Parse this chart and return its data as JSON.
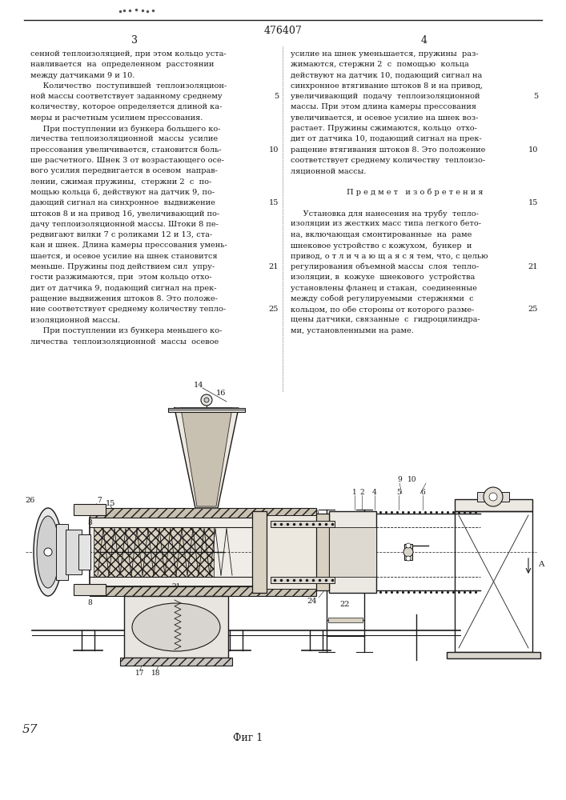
{
  "patent_number": "476407",
  "page_col_left": "3",
  "page_col_right": "4",
  "background_color": "#ffffff",
  "text_color": "#1a1a1a",
  "col_left_text": [
    "сенной теплоизоляцией, при этом кольцо уста-",
    "навливается  на  определенном  расстоянии",
    "между датчиками 9 и 10.",
    "     Количество  поступившей  теплоизоляцион-",
    "ной массы соответствует заданному среднему",
    "количеству, которое определяется длиной ка-",
    "меры и расчетным усилием прессования.",
    "     При поступлении из бункера большего ко-",
    "личества теплоизоляционной  массы  усилие",
    "прессования увеличивается, становится боль-",
    "ше расчетного. Шнек 3 от возрастающего осе-",
    "вого усилия передвигается в осевом  направ-",
    "лении, сжимая пружины,  стержни 2  с  по-",
    "мощью кольца 6, действуют на датчик 9, по-",
    "дающий сигнал на синхронное  выдвижение",
    "штоков 8 и на привод 16, увеличивающий по-",
    "дачу теплоизоляционной массы. Штоки 8 пе-",
    "редвигают вилки 7 с роликами 12 и 13, ста-",
    "кан и шнек. Длина камеры прессования умень-",
    "шается, и осевое усилие на шнек становится",
    "меньше. Пружины под действием сил  упру-",
    "гости разжимаются, при  этом кольцо отхо-",
    "дит от датчика 9, подающий сигнал на прек-",
    "ращение выдвижения штоков 8. Это положе-",
    "ние соответствует среднему количеству тепло-",
    "изоляционной массы.",
    "     При поступлении из бункера меньшего ко-",
    "личества  теплоизоляционной  массы  осевое"
  ],
  "col_right_text": [
    "усилие на шнек уменьшается, пружины  раз-",
    "жимаются, стержни 2  с  помощью  кольца",
    "действуют на датчик 10, подающий сигнал на",
    "синхронное втягивание штоков 8 и на привод,",
    "увеличивающий  подачу  теплоизоляционной",
    "массы. При этом длина камеры прессования",
    "увеличивается, и осевое усилие на шнек воз-",
    "растает. Пружины сжимаются, кольцо  отхо-",
    "дит от датчика 10, подающий сигнал на прек-",
    "ращение втягивания штоков 8. Это положение",
    "соответствует среднему количеству  теплоизо-",
    "ляционной массы.",
    "",
    "        П р е д м е т   и з о б р е т е н и я",
    "",
    "     Установка для нанесения на трубу  тепло-",
    "изоляции из жестких масс типа легкого бето-",
    "на, включающая смонтированные  на  раме",
    "шнековое устройство с кожухом,  бункер  и",
    "привод, о т л и ч а ю щ а я с я тем, что, с целью",
    "регулирования объемной массы  слоя  тепло-",
    "изоляции, в  кожухе  шнекового  устройства",
    "установлены фланец и стакан,  соединенные",
    "между собой регулируемыми  стержнями  с",
    "кольцом, по обе стороны от которого разме-",
    "щены датчики, связанные  с  гидроцилиндра-",
    "ми, установленными на раме."
  ],
  "figcaption": "Фиг 1",
  "handwritten_note": "57"
}
